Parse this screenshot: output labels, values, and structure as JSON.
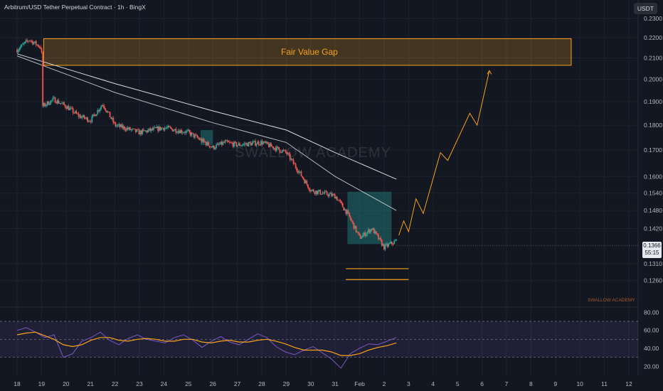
{
  "header": {
    "title": "Arbitrum/USD Tether Perpetual Contract · 1h · BingX",
    "currency_badge": "USDT"
  },
  "annotations": {
    "fvg_label": "Fair Value Gap",
    "watermark_big": "SWALLOW ACADEMY",
    "watermark_small": "SWALLOW ACADEMY"
  },
  "price_tag": {
    "price": "0.1366",
    "countdown": "55:15"
  },
  "colors": {
    "background": "#131722",
    "up": "#26a69a",
    "down": "#ef5350",
    "fvg": "#f7a21b",
    "rsi_line": "#7e57c2",
    "rsi_ma": "#f7a21b"
  },
  "chart_data": [
    {
      "type": "candlestick",
      "symbol": "ARB/USDT",
      "timeframe": "1h",
      "scale": "log",
      "ylim": [
        0.1225,
        0.236
      ],
      "y_ticks": [
        "0.2300",
        "0.2200",
        "0.2100",
        "0.2000",
        "0.1900",
        "0.1800",
        "0.1700",
        "0.1600",
        "0.1540",
        "0.1480",
        "0.1420",
        "0.1310",
        "0.1260"
      ],
      "x_ticks": [
        "18",
        "19",
        "20",
        "21",
        "22",
        "23",
        "24",
        "25",
        "26",
        "27",
        "28",
        "29",
        "30",
        "31",
        "Feb",
        "2",
        "3",
        "4",
        "5",
        "6",
        "7",
        "8",
        "9",
        "10",
        "11",
        "12"
      ],
      "price_path": [
        {
          "t": "18",
          "p": 0.214
        },
        {
          "t": "18.5",
          "p": 0.219
        },
        {
          "t": "19",
          "p": 0.215
        },
        {
          "t": "19.05",
          "p": 0.188
        },
        {
          "t": "19.5",
          "p": 0.191
        },
        {
          "t": "20",
          "p": 0.188
        },
        {
          "t": "20.5",
          "p": 0.184
        },
        {
          "t": "21",
          "p": 0.182
        },
        {
          "t": "21.5",
          "p": 0.189
        },
        {
          "t": "22",
          "p": 0.18
        },
        {
          "t": "23",
          "p": 0.177
        },
        {
          "t": "24",
          "p": 0.179
        },
        {
          "t": "25",
          "p": 0.177
        },
        {
          "t": "26",
          "p": 0.171
        },
        {
          "t": "26.5",
          "p": 0.173
        },
        {
          "t": "27",
          "p": 0.172
        },
        {
          "t": "28",
          "p": 0.173
        },
        {
          "t": "29",
          "p": 0.169
        },
        {
          "t": "29.5",
          "p": 0.162
        },
        {
          "t": "30",
          "p": 0.155
        },
        {
          "t": "31",
          "p": 0.153
        },
        {
          "t": "31.5",
          "p": 0.147
        },
        {
          "t": "Feb",
          "p": 0.139
        },
        {
          "t": "1.5",
          "p": 0.142
        },
        {
          "t": "2",
          "p": 0.136
        },
        {
          "t": "2.5",
          "p": 0.138
        }
      ],
      "moving_averages": [
        {
          "name": "",
          "values": [
            {
              "t": "18",
              "p": 0.212
            },
            {
              "t": "22",
              "p": 0.198
            },
            {
              "t": "26",
              "p": 0.186
            },
            {
              "t": "29",
              "p": 0.178
            },
            {
              "t": "31",
              "p": 0.169
            },
            {
              "t": "2.5",
              "p": 0.159
            }
          ]
        },
        {
          "name": "",
          "values": [
            {
              "t": "18",
              "p": 0.211
            },
            {
              "t": "22",
              "p": 0.194
            },
            {
              "t": "26",
              "p": 0.181
            },
            {
              "t": "29",
              "p": 0.173
            },
            {
              "t": "31",
              "p": 0.16
            },
            {
              "t": "2.5",
              "p": 0.148
            }
          ]
        }
      ],
      "fair_value_gap": {
        "label": "Fair Value Gap",
        "from": "19",
        "to": "10",
        "top": 0.2195,
        "bottom": 0.2065
      },
      "support_lines": [
        {
          "p": 0.1295,
          "from": "31",
          "to": "3"
        },
        {
          "p": 0.1263,
          "from": "31",
          "to": "3"
        }
      ],
      "projection": [
        {
          "t": "2.6",
          "p": 0.1398
        },
        {
          "t": "2.8",
          "p": 0.1445
        },
        {
          "t": "3",
          "p": 0.141
        },
        {
          "t": "3.3",
          "p": 0.152
        },
        {
          "t": "3.6",
          "p": 0.147
        },
        {
          "t": "4.3",
          "p": 0.169
        },
        {
          "t": "4.6",
          "p": 0.166
        },
        {
          "t": "5.5",
          "p": 0.185
        },
        {
          "t": "5.8",
          "p": 0.18
        },
        {
          "t": "6.3",
          "p": 0.204
        }
      ],
      "demand_zones": [
        {
          "from": "25.5",
          "to": "26",
          "top": 0.178,
          "bottom": 0.172
        },
        {
          "from": "31.5",
          "to": "2.3",
          "top": 0.1545,
          "bottom": 0.137
        }
      ],
      "last_price": 0.1366
    },
    {
      "type": "line",
      "name": "RSI",
      "ylim": [
        10,
        85
      ],
      "y_ticks": [
        "80.00",
        "60.00",
        "40.00",
        "20.00"
      ],
      "bands": [
        30,
        50,
        70
      ],
      "series": [
        {
          "name": "",
          "values": [
            60,
            63,
            58,
            52,
            55,
            30,
            34,
            48,
            52,
            58,
            49,
            44,
            51,
            55,
            50,
            48,
            46,
            52,
            55,
            49,
            41,
            48,
            53,
            47,
            44,
            50,
            56,
            52,
            42,
            36,
            33,
            38,
            42,
            35,
            28,
            18,
            34,
            40,
            45,
            44,
            48,
            52
          ]
        },
        {
          "name": "",
          "values": [
            55,
            57,
            58,
            54,
            50,
            44,
            42,
            44,
            49,
            52,
            52,
            49,
            48,
            50,
            51,
            50,
            48,
            48,
            50,
            50,
            47,
            46,
            48,
            49,
            47,
            47,
            49,
            50,
            48,
            45,
            41,
            38,
            38,
            38,
            36,
            32,
            32,
            34,
            38,
            41,
            43,
            46
          ]
        }
      ]
    }
  ]
}
